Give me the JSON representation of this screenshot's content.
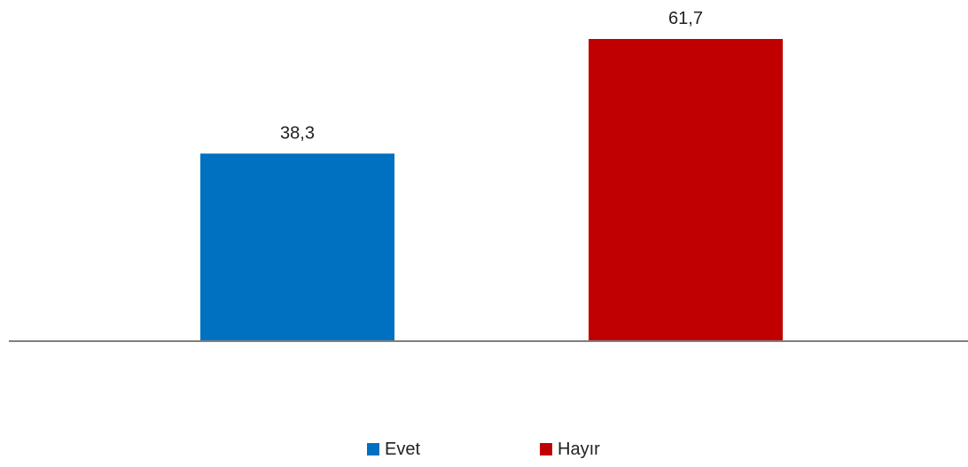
{
  "chart_data": {
    "type": "bar",
    "categories": [
      "Evet",
      "Hayır"
    ],
    "values": [
      38.3,
      61.7
    ],
    "value_labels": [
      "38,3",
      "61,7"
    ],
    "colors": [
      "#0070C0",
      "#C00000"
    ],
    "axis_color": "#7f7f7f",
    "ylim": [
      0,
      61.7
    ],
    "grid": false,
    "legend_position": "bottom",
    "title": "",
    "xlabel": "",
    "ylabel": ""
  }
}
